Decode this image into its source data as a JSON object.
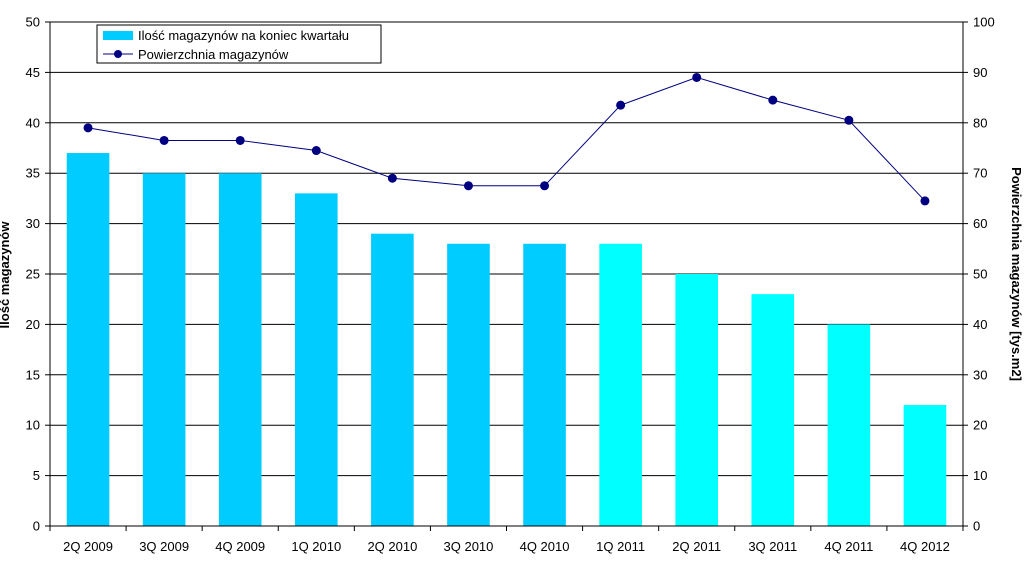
{
  "chart_data": {
    "type": "bar",
    "categories": [
      "2Q 2009",
      "3Q 2009",
      "4Q 2009",
      "1Q 2010",
      "2Q 2010",
      "3Q 2010",
      "4Q 2010",
      "1Q 2011",
      "2Q 2011",
      "3Q 2011",
      "4Q 2011",
      "4Q 2012"
    ],
    "series": [
      {
        "name": "Ilość magazynów na koniec kwartału",
        "type": "bar",
        "axis": "left",
        "values": [
          37,
          35,
          35,
          33,
          29,
          28,
          28,
          28,
          25,
          23,
          20,
          12
        ],
        "colors": [
          "#00ccff",
          "#00ccff",
          "#00ccff",
          "#00ccff",
          "#00ccff",
          "#00ccff",
          "#00ccff",
          "#00ffff",
          "#00ffff",
          "#00ffff",
          "#00ffff",
          "#00ffff"
        ]
      },
      {
        "name": "Powierzchnia magazynów",
        "type": "line",
        "axis": "right",
        "values": [
          79,
          76.5,
          76.5,
          74.5,
          69,
          67.5,
          67.5,
          83.5,
          89,
          84.5,
          80.5,
          64.5
        ],
        "color": "#000080"
      }
    ],
    "title": "",
    "xlabel": "",
    "ylabel": "Ilość magazynów",
    "y2label": "Powierzchnia magazynów [tys.m2]",
    "ylim": [
      0,
      50
    ],
    "y2lim": [
      0,
      100
    ],
    "yticks": [
      "0",
      "5",
      "10",
      "15",
      "20",
      "25",
      "30",
      "35",
      "40",
      "45",
      "50"
    ],
    "y2ticks": [
      "0",
      "10",
      "20",
      "30",
      "40",
      "50",
      "60",
      "70",
      "80",
      "90",
      "100"
    ],
    "grid": true,
    "legend_position": "top-left"
  }
}
